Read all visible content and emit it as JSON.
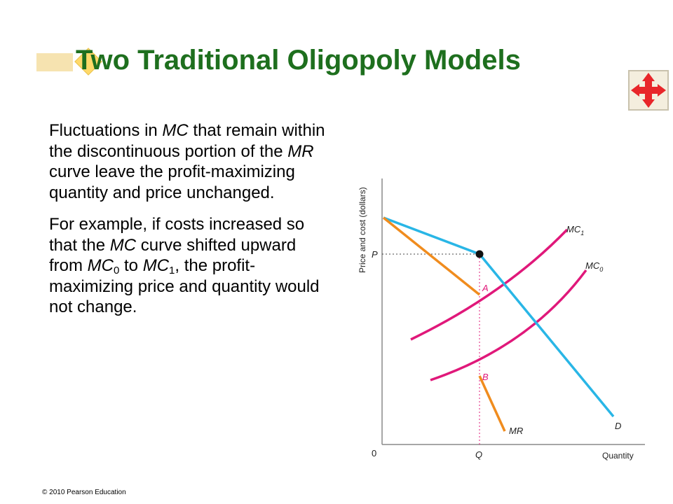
{
  "slide": {
    "title": "Two Traditional Oligopoly Models",
    "footer": "© 2010 Pearson Education"
  },
  "body": {
    "p1": {
      "t1": "Fluctuations in ",
      "mc": "MC",
      "t2": " that remain within the discontinuous portion of the ",
      "mr": "MR",
      "t3": " curve leave the profit-maximizing quantity and price unchanged."
    },
    "p2": {
      "t1": "For example,  if costs increased so that the ",
      "mc": "MC",
      "t2": " curve shifted upward from ",
      "mc0": "MC",
      "sub0": "0",
      "t3": " to ",
      "mc1": "MC",
      "sub1": "1",
      "t4": ", the profit-maximizing price and quantity would not change."
    }
  },
  "diagram": {
    "y_axis_label": "Price and cost (dollars)",
    "x_axis_label": "Quantity",
    "origin_label": "0",
    "price_label": "P",
    "quantity_label": "Q",
    "point_a_label": "A",
    "point_b_label": "B",
    "curve_labels": {
      "mc1_main": "MC",
      "mc1_sub": "1",
      "mc0_main": "MC",
      "mc0_sub": "0",
      "mr": "MR",
      "d": "D"
    },
    "colors": {
      "demand": "#29b6e6",
      "marginal_revenue": "#f08c1e",
      "marginal_cost": "#e0187a",
      "title": "#1e6f1e",
      "nav_arrows": "#e8262a"
    }
  },
  "icons": {
    "nav": "four-way-arrows-icon",
    "bullet": "diamond-bullet-icon"
  }
}
